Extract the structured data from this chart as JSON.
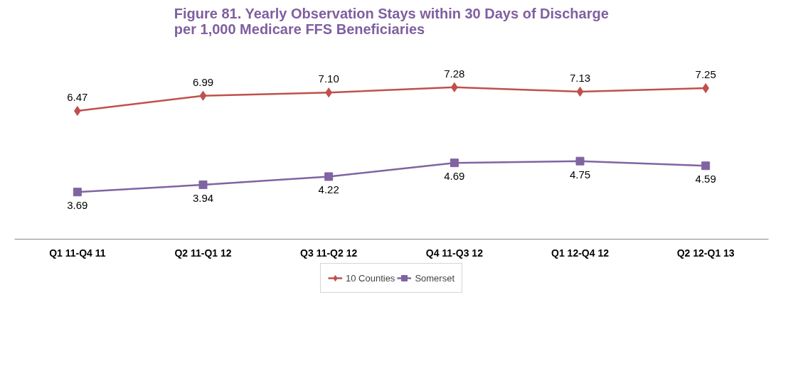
{
  "chart_data": {
    "type": "line",
    "title": "Figure 81. Yearly Observation Stays within 30 Days of Discharge\nper 1,000 Medicare FFS Beneficiaries",
    "categories": [
      "Q1 11-Q4 11",
      "Q2 11-Q1 12",
      "Q3 11-Q2 12",
      "Q4 11-Q3 12",
      "Q1 12-Q4 12",
      "Q2 12-Q1 13"
    ],
    "series": [
      {
        "name": "10 Counties",
        "color": "#c0504d",
        "marker": "diamond",
        "values": [
          6.47,
          6.99,
          7.1,
          7.28,
          7.13,
          7.25
        ],
        "value_labels": [
          "6.47",
          "6.99",
          "7.10",
          "7.28",
          "7.13",
          "7.25"
        ]
      },
      {
        "name": "Somerset",
        "color": "#8064a2",
        "marker": "square",
        "values": [
          3.69,
          3.94,
          4.22,
          4.69,
          4.75,
          4.59
        ],
        "value_labels": [
          "3.69",
          "3.94",
          "4.22",
          "4.69",
          "4.75",
          "4.59"
        ]
      }
    ],
    "legend": "bottom",
    "tick_labels": "x"
  }
}
